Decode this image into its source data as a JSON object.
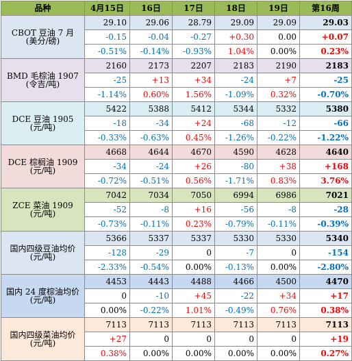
{
  "header": [
    "品种",
    "4月15日",
    "16日",
    "17日",
    "18日",
    "19日",
    "第16周"
  ],
  "groups": [
    {
      "name_line1": "CBOT 豆油 7 月",
      "name_line2": "(美分/磅)",
      "prices": [
        "29.10",
        "29.06",
        "28.79",
        "29.09",
        "29.09",
        "29.03"
      ],
      "changes": [
        "-0.15",
        "-0.04",
        "-0.27",
        "+0.30",
        "0.00",
        "+0.07"
      ],
      "pcts": [
        "-0.51%",
        "-0.14%",
        "-0.93%",
        "1.04%",
        "0.00%",
        "0.23%"
      ]
    },
    {
      "name_line1": "BMD 毛棕油 1907",
      "name_line2": "(令吉/吨)",
      "prices": [
        "2160",
        "2173",
        "2207",
        "2183",
        "2190",
        "2183"
      ],
      "changes": [
        "-25",
        "+13",
        "+34",
        "-24",
        "+7",
        "-25"
      ],
      "pcts": [
        "-1.14%",
        "0.60%",
        "1.56%",
        "-1.09%",
        "0.32%",
        "-0.70%"
      ]
    },
    {
      "name_line1": "DCE 豆油 1905",
      "name_line2": "(元/吨)",
      "prices": [
        "5422",
        "5388",
        "5412",
        "5344",
        "5332",
        "5380"
      ],
      "changes": [
        "-18",
        "-34",
        "+24",
        "-68",
        "-12",
        "-66"
      ],
      "pcts": [
        "-0.33%",
        "-0.63%",
        "0.45%",
        "-1.26%",
        "-0.22%",
        "-1.22%"
      ]
    },
    {
      "name_line1": "DCE 棕榈油 1909",
      "name_line2": "(元/吨)",
      "prices": [
        "4668",
        "4644",
        "4670",
        "4590",
        "4628",
        "4640"
      ],
      "changes": [
        "-34",
        "-24",
        "+26",
        "-80",
        "+38",
        "+168"
      ],
      "pcts": [
        "-0.72%",
        "-0.51%",
        "0.56%",
        "-1.71%",
        "0.83%",
        "3.76%"
      ]
    },
    {
      "name_line1": "ZCE 菜油 1909",
      "name_line2": "(元/吨)",
      "prices": [
        "7042",
        "7034",
        "7050",
        "6994",
        "6986",
        "7021"
      ],
      "changes": [
        "-52",
        "-8",
        "+16",
        "-56",
        "-8",
        "-28"
      ],
      "pcts": [
        "-0.73%",
        "-0.11%",
        "0.23%",
        "-0.79%",
        "-0.11%",
        "-0.39%"
      ]
    },
    {
      "name_line1": "国内四级豆油均价",
      "name_line2": "(元/吨)",
      "prices": [
        "5366",
        "5337",
        "5337",
        "5330",
        "5330",
        "5340"
      ],
      "changes": [
        "-128",
        "-29",
        "0",
        "-7",
        "0",
        "-154"
      ],
      "pcts": [
        "-2.33%",
        "-0.54%",
        "0.00%",
        "-0.13%",
        "0.00%",
        "-2.80%"
      ]
    },
    {
      "name_line1": "国内 24 度棕油均价",
      "name_line2": "(元/吨)",
      "prices": [
        "4453",
        "4443",
        "4488",
        "4466",
        "4500",
        "4470"
      ],
      "changes": [
        "0",
        "-10",
        "+45",
        "-22",
        "+34",
        "+17"
      ],
      "pcts": [
        "0.00%",
        "-0.22%",
        "1.01%",
        "-0.49%",
        "0.76%",
        "0.38%"
      ]
    },
    {
      "name_line1": "国内四级菜油均价",
      "name_line2": "(元/吨)",
      "prices": [
        "7113",
        "7113",
        "7113",
        "7113",
        "7113",
        "7113"
      ],
      "changes": [
        "+27",
        "0",
        "0",
        "0",
        "0",
        "+19"
      ],
      "pcts": [
        "0.38%",
        "0.00%",
        "0.00%",
        "0.00%",
        "0.00%",
        "0.27%"
      ]
    }
  ],
  "colors": {
    "header_bg": "#9bbb59",
    "positive": "#ff0000",
    "negative": "#0070c0"
  }
}
